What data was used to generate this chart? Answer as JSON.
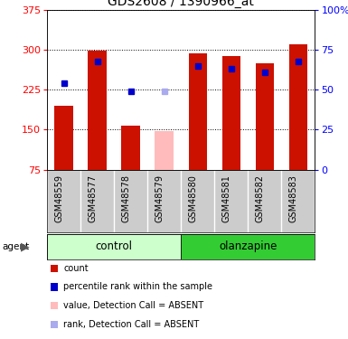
{
  "title": "GDS2608 / 1390966_at",
  "samples": [
    "GSM48559",
    "GSM48577",
    "GSM48578",
    "GSM48579",
    "GSM48580",
    "GSM48581",
    "GSM48582",
    "GSM48583"
  ],
  "groups": [
    "control",
    "control",
    "control",
    "control",
    "olanzapine",
    "olanzapine",
    "olanzapine",
    "olanzapine"
  ],
  "absent": [
    false,
    false,
    false,
    true,
    false,
    false,
    false,
    false
  ],
  "bar_values": [
    195,
    298,
    158,
    147,
    293,
    288,
    275,
    310
  ],
  "rank_values": [
    237,
    278,
    222,
    222,
    270,
    265,
    258,
    278
  ],
  "rank_absent": [
    false,
    false,
    false,
    true,
    false,
    false,
    false,
    false
  ],
  "ylim_left": [
    75,
    375
  ],
  "ylim_right": [
    0,
    100
  ],
  "yticks_left": [
    75,
    150,
    225,
    300,
    375
  ],
  "yticks_right": [
    0,
    25,
    50,
    75,
    100
  ],
  "bar_color_normal": "#cc1100",
  "bar_color_absent": "#ffbbbb",
  "rank_color_normal": "#0000cc",
  "rank_color_absent": "#aaaaee",
  "plot_bg": "#ffffff",
  "grid_color": "#000000",
  "control_color_light": "#ccffcc",
  "control_color_dark": "#33cc33",
  "olanzapine_color": "#33cc33",
  "control_color": "#ccffcc",
  "sample_bg": "#cccccc",
  "legend_items": [
    {
      "color": "#cc1100",
      "label": "count"
    },
    {
      "color": "#0000cc",
      "label": "percentile rank within the sample"
    },
    {
      "color": "#ffbbbb",
      "label": "value, Detection Call = ABSENT"
    },
    {
      "color": "#aaaaee",
      "label": "rank, Detection Call = ABSENT"
    }
  ],
  "agent_label": "agent",
  "bar_width": 0.55
}
